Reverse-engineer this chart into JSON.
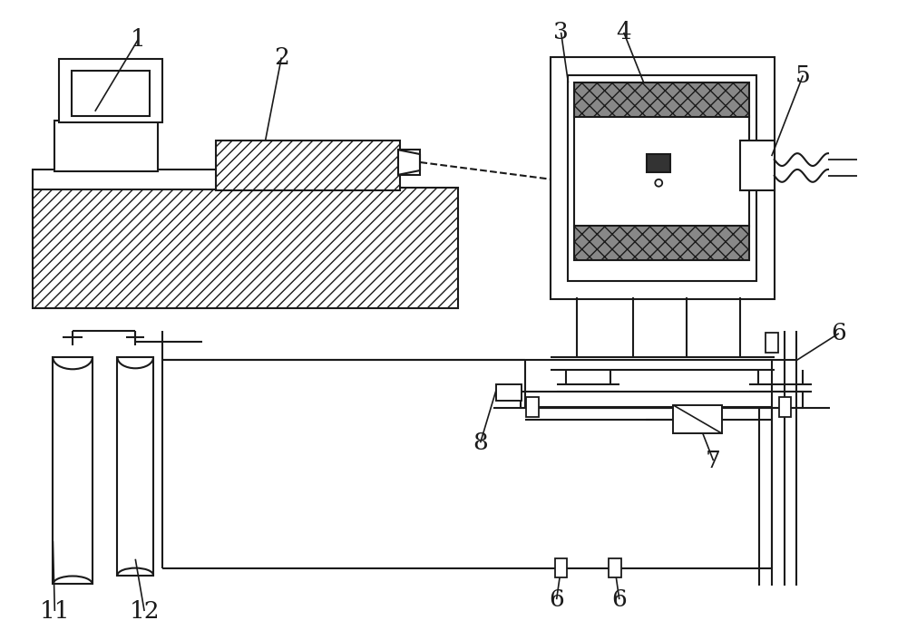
{
  "bg_color": "#ffffff",
  "lc": "#1a1a1a",
  "lw": 1.5,
  "fig_w": 10.0,
  "fig_h": 6.95
}
